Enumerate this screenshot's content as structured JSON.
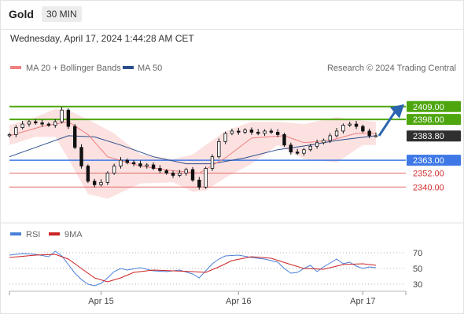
{
  "header": {
    "symbol": "Gold",
    "timeframe": "30 MIN"
  },
  "timestamp": "Wednesday, April 17, 2024 1:44:28 AM CET",
  "legend": {
    "ma20_label": "MA 20 + Bollinger Bands",
    "ma50_label": "MA 50",
    "copyright": "Research © 2024 Trading Central"
  },
  "rsi_legend": {
    "rsi_label": "RSI",
    "ma9_label": "9MA"
  },
  "colors": {
    "resistance": "#4ea60f",
    "support": "#3d78e6",
    "secondary": "#e36a6a",
    "ma20": "#f08080",
    "ma50": "#2b4e8c",
    "band_fill": "#fbdcdc",
    "rsi": "#4a7fd8",
    "rsi_ma": "#cc2222",
    "arrow": "#2c64b0"
  },
  "chart_data": [
    {
      "type": "candlestick",
      "title": "",
      "x_ticks": [
        "Apr 15",
        "Apr 16",
        "Apr 17"
      ],
      "price_ylim": [
        2320,
        2425
      ],
      "levels": [
        {
          "value": "2409.00",
          "kind": "resistance"
        },
        {
          "value": "2398.00",
          "kind": "resistance"
        },
        {
          "value": "2383.80",
          "kind": "current"
        },
        {
          "value": "2363.00",
          "kind": "support"
        },
        {
          "value": "2352.00",
          "kind": "secondary"
        },
        {
          "value": "2340.00",
          "kind": "secondary"
        }
      ],
      "close_points": [
        [
          0,
          2385
        ],
        [
          2,
          2391
        ],
        [
          4,
          2394
        ],
        [
          6,
          2396
        ],
        [
          8,
          2395
        ],
        [
          10,
          2394
        ],
        [
          12,
          2393
        ],
        [
          14,
          2396
        ],
        [
          16,
          2406
        ],
        [
          18,
          2392
        ],
        [
          20,
          2374
        ],
        [
          22,
          2358
        ],
        [
          24,
          2345
        ],
        [
          26,
          2342
        ],
        [
          28,
          2344
        ],
        [
          30,
          2352
        ],
        [
          32,
          2358
        ],
        [
          34,
          2363
        ],
        [
          36,
          2361
        ],
        [
          38,
          2360
        ],
        [
          40,
          2358
        ],
        [
          42,
          2359
        ],
        [
          44,
          2356
        ],
        [
          46,
          2354
        ],
        [
          48,
          2352
        ],
        [
          50,
          2350
        ],
        [
          52,
          2352
        ],
        [
          54,
          2355
        ],
        [
          56,
          2346
        ],
        [
          58,
          2340
        ],
        [
          60,
          2356
        ],
        [
          62,
          2366
        ],
        [
          64,
          2379
        ],
        [
          66,
          2386
        ],
        [
          68,
          2388
        ],
        [
          70,
          2387
        ],
        [
          72,
          2389
        ],
        [
          74,
          2387
        ],
        [
          76,
          2386
        ],
        [
          78,
          2388
        ],
        [
          80,
          2387
        ],
        [
          82,
          2385
        ],
        [
          84,
          2376
        ],
        [
          86,
          2370
        ],
        [
          88,
          2369
        ],
        [
          90,
          2372
        ],
        [
          92,
          2375
        ],
        [
          94,
          2378
        ],
        [
          96,
          2380
        ],
        [
          98,
          2384
        ],
        [
          100,
          2388
        ],
        [
          102,
          2393
        ],
        [
          104,
          2394
        ],
        [
          106,
          2392
        ],
        [
          108,
          2388
        ],
        [
          110,
          2384
        ],
        [
          112,
          2384
        ]
      ],
      "ma20_points": [
        [
          0,
          2384
        ],
        [
          10,
          2392
        ],
        [
          18,
          2396
        ],
        [
          24,
          2385
        ],
        [
          30,
          2366
        ],
        [
          40,
          2358
        ],
        [
          50,
          2354
        ],
        [
          58,
          2352
        ],
        [
          66,
          2365
        ],
        [
          74,
          2382
        ],
        [
          84,
          2384
        ],
        [
          90,
          2378
        ],
        [
          98,
          2380
        ],
        [
          106,
          2386
        ],
        [
          112,
          2386
        ]
      ],
      "ma50_points": [
        [
          0,
          2366
        ],
        [
          10,
          2376
        ],
        [
          18,
          2384
        ],
        [
          26,
          2383
        ],
        [
          34,
          2376
        ],
        [
          44,
          2366
        ],
        [
          54,
          2360
        ],
        [
          62,
          2360
        ],
        [
          72,
          2365
        ],
        [
          82,
          2372
        ],
        [
          92,
          2376
        ],
        [
          100,
          2380
        ],
        [
          112,
          2384
        ]
      ],
      "band_upper_points": [
        [
          0,
          2393
        ],
        [
          8,
          2400
        ],
        [
          14,
          2407
        ],
        [
          18,
          2406
        ],
        [
          24,
          2398
        ],
        [
          32,
          2386
        ],
        [
          40,
          2368
        ],
        [
          50,
          2364
        ],
        [
          56,
          2368
        ],
        [
          60,
          2376
        ],
        [
          66,
          2388
        ],
        [
          74,
          2396
        ],
        [
          82,
          2396
        ],
        [
          90,
          2394
        ],
        [
          100,
          2400
        ],
        [
          108,
          2397
        ],
        [
          112,
          2396
        ]
      ],
      "band_lower_points": [
        [
          0,
          2376
        ],
        [
          8,
          2383
        ],
        [
          14,
          2383
        ],
        [
          18,
          2364
        ],
        [
          24,
          2334
        ],
        [
          30,
          2330
        ],
        [
          40,
          2343
        ],
        [
          50,
          2344
        ],
        [
          56,
          2336
        ],
        [
          60,
          2337
        ],
        [
          66,
          2348
        ],
        [
          74,
          2360
        ],
        [
          82,
          2376
        ],
        [
          90,
          2364
        ],
        [
          100,
          2361
        ],
        [
          108,
          2376
        ],
        [
          112,
          2376
        ]
      ]
    },
    {
      "type": "line",
      "title": "",
      "yticks": [
        "70",
        "50",
        "30"
      ],
      "ylim": [
        20,
        80
      ],
      "rsi_points": [
        [
          0,
          67
        ],
        [
          4,
          69
        ],
        [
          8,
          68
        ],
        [
          12,
          65
        ],
        [
          14,
          72
        ],
        [
          16,
          66
        ],
        [
          18,
          55
        ],
        [
          20,
          44
        ],
        [
          22,
          36
        ],
        [
          24,
          30
        ],
        [
          26,
          28
        ],
        [
          28,
          31
        ],
        [
          30,
          38
        ],
        [
          32,
          46
        ],
        [
          34,
          50
        ],
        [
          36,
          48
        ],
        [
          40,
          51
        ],
        [
          44,
          47
        ],
        [
          48,
          46
        ],
        [
          52,
          48
        ],
        [
          56,
          43
        ],
        [
          58,
          38
        ],
        [
          60,
          47
        ],
        [
          62,
          56
        ],
        [
          64,
          62
        ],
        [
          66,
          66
        ],
        [
          70,
          67
        ],
        [
          74,
          64
        ],
        [
          78,
          62
        ],
        [
          82,
          58
        ],
        [
          84,
          50
        ],
        [
          86,
          44
        ],
        [
          88,
          45
        ],
        [
          90,
          50
        ],
        [
          92,
          54
        ],
        [
          94,
          46
        ],
        [
          96,
          52
        ],
        [
          98,
          57
        ],
        [
          100,
          62
        ],
        [
          102,
          56
        ],
        [
          104,
          58
        ],
        [
          106,
          53
        ],
        [
          108,
          50
        ],
        [
          110,
          52
        ],
        [
          112,
          51
        ]
      ],
      "ma9_points": [
        [
          0,
          64
        ],
        [
          8,
          67
        ],
        [
          14,
          68
        ],
        [
          18,
          62
        ],
        [
          22,
          50
        ],
        [
          26,
          38
        ],
        [
          30,
          33
        ],
        [
          34,
          38
        ],
        [
          38,
          45
        ],
        [
          44,
          48
        ],
        [
          50,
          47
        ],
        [
          56,
          46
        ],
        [
          60,
          45
        ],
        [
          64,
          52
        ],
        [
          68,
          60
        ],
        [
          74,
          65
        ],
        [
          80,
          63
        ],
        [
          86,
          55
        ],
        [
          90,
          50
        ],
        [
          96,
          49
        ],
        [
          102,
          55
        ],
        [
          108,
          56
        ],
        [
          112,
          54
        ]
      ]
    }
  ]
}
